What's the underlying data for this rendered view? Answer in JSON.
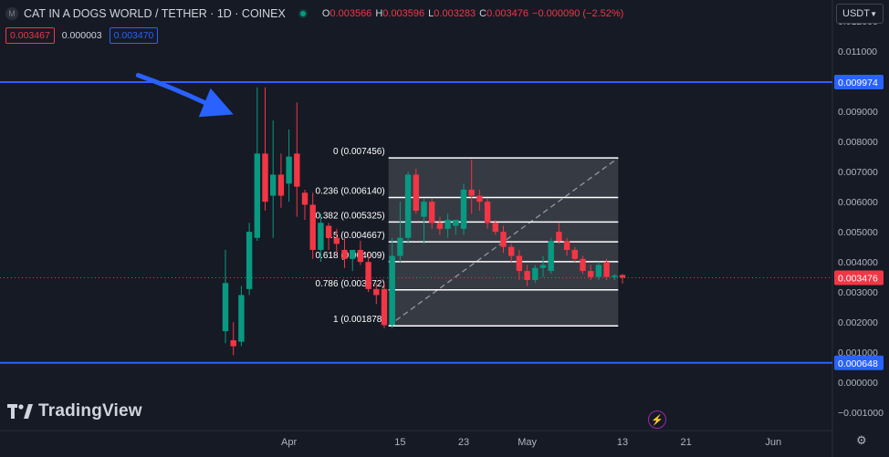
{
  "header": {
    "symbol_initial": "M",
    "title": "CAT IN A DOGS WORLD / TETHER · 1D · COINEX",
    "o_label": "O",
    "o_value": "0.003566",
    "h_label": "H",
    "h_value": "0.003596",
    "l_label": "L",
    "l_value": "0.003283",
    "c_label": "C",
    "c_value": "0.003476",
    "change": "−0.000090 (−2.52%)",
    "sell_price": "0.003467",
    "spread": "0.000003",
    "buy_price": "0.003470"
  },
  "currency_button": "USDT",
  "brand": "TradingView",
  "colors": {
    "up": "#089981",
    "down": "#f23645",
    "line": "#2962ff",
    "background": "#161a25"
  },
  "chart_data": {
    "type": "candlestick",
    "symbol": "CAT/USDT",
    "timeframe": "1D",
    "y_axis_ticks": [
      "0.012000",
      "0.011000",
      "0.010000",
      "0.009000",
      "0.008000",
      "0.007000",
      "0.006000",
      "0.005000",
      "0.004000",
      "0.003000",
      "0.002000",
      "0.001000",
      "0.000000",
      "−0.001000"
    ],
    "ylim": [
      -0.0016,
      0.0127
    ],
    "x_axis_ticks": [
      {
        "label": "Apr",
        "index": 8
      },
      {
        "label": "15",
        "index": 22
      },
      {
        "label": "23",
        "index": 30
      },
      {
        "label": "May",
        "index": 38
      },
      {
        "label": "13",
        "index": 50
      },
      {
        "label": "21",
        "index": 58
      },
      {
        "label": "Jun",
        "index": 69
      }
    ],
    "candles": [
      {
        "o": 0.0017,
        "h": 0.0044,
        "l": 0.0013,
        "c": 0.0033
      },
      {
        "o": 0.0014,
        "h": 0.002,
        "l": 0.0009,
        "c": 0.0012
      },
      {
        "o": 0.00135,
        "h": 0.0032,
        "l": 0.0012,
        "c": 0.0029
      },
      {
        "o": 0.0031,
        "h": 0.0053,
        "l": 0.0029,
        "c": 0.005
      },
      {
        "o": 0.0048,
        "h": 0.0098,
        "l": 0.0047,
        "c": 0.0076
      },
      {
        "o": 0.0076,
        "h": 0.0098,
        "l": 0.0057,
        "c": 0.006
      },
      {
        "o": 0.0062,
        "h": 0.0087,
        "l": 0.0048,
        "c": 0.0069
      },
      {
        "o": 0.0069,
        "h": 0.0076,
        "l": 0.0058,
        "c": 0.0062
      },
      {
        "o": 0.0066,
        "h": 0.0084,
        "l": 0.006,
        "c": 0.0075
      },
      {
        "o": 0.0076,
        "h": 0.0093,
        "l": 0.0055,
        "c": 0.0065
      },
      {
        "o": 0.0063,
        "h": 0.0064,
        "l": 0.0054,
        "c": 0.0059
      },
      {
        "o": 0.0059,
        "h": 0.0063,
        "l": 0.0041,
        "c": 0.0044
      },
      {
        "o": 0.0044,
        "h": 0.0056,
        "l": 0.004,
        "c": 0.0053
      },
      {
        "o": 0.0052,
        "h": 0.0053,
        "l": 0.0044,
        "c": 0.0048
      },
      {
        "o": 0.0048,
        "h": 0.0051,
        "l": 0.0043,
        "c": 0.0046
      },
      {
        "o": 0.0044,
        "h": 0.0048,
        "l": 0.0038,
        "c": 0.0041
      },
      {
        "o": 0.0041,
        "h": 0.0044,
        "l": 0.0037,
        "c": 0.0044
      },
      {
        "o": 0.0044,
        "h": 0.0047,
        "l": 0.0039,
        "c": 0.004
      },
      {
        "o": 0.004,
        "h": 0.0043,
        "l": 0.003,
        "c": 0.0031
      },
      {
        "o": 0.0031,
        "h": 0.0033,
        "l": 0.0026,
        "c": 0.0029
      },
      {
        "o": 0.0031,
        "h": 0.0033,
        "l": 0.0018,
        "c": 0.0019
      },
      {
        "o": 0.0019,
        "h": 0.0048,
        "l": 0.0018,
        "c": 0.0042
      },
      {
        "o": 0.0042,
        "h": 0.006,
        "l": 0.004,
        "c": 0.0048
      },
      {
        "o": 0.0048,
        "h": 0.007,
        "l": 0.0046,
        "c": 0.0069
      },
      {
        "o": 0.0069,
        "h": 0.0071,
        "l": 0.0056,
        "c": 0.0057
      },
      {
        "o": 0.0055,
        "h": 0.0061,
        "l": 0.0046,
        "c": 0.006
      },
      {
        "o": 0.006,
        "h": 0.0061,
        "l": 0.0051,
        "c": 0.0053
      },
      {
        "o": 0.0053,
        "h": 0.0055,
        "l": 0.0049,
        "c": 0.0051
      },
      {
        "o": 0.0051,
        "h": 0.0056,
        "l": 0.0048,
        "c": 0.0054
      },
      {
        "o": 0.0052,
        "h": 0.0054,
        "l": 0.0049,
        "c": 0.0054
      },
      {
        "o": 0.0051,
        "h": 0.0066,
        "l": 0.0049,
        "c": 0.0064
      },
      {
        "o": 0.0064,
        "h": 0.0074,
        "l": 0.0056,
        "c": 0.0062
      },
      {
        "o": 0.0062,
        "h": 0.0064,
        "l": 0.0057,
        "c": 0.006
      },
      {
        "o": 0.006,
        "h": 0.0061,
        "l": 0.0051,
        "c": 0.0053
      },
      {
        "o": 0.0053,
        "h": 0.0054,
        "l": 0.0049,
        "c": 0.005
      },
      {
        "o": 0.005,
        "h": 0.0052,
        "l": 0.0043,
        "c": 0.0045
      },
      {
        "o": 0.0045,
        "h": 0.0046,
        "l": 0.004,
        "c": 0.0042
      },
      {
        "o": 0.0042,
        "h": 0.0044,
        "l": 0.0034,
        "c": 0.0037
      },
      {
        "o": 0.0037,
        "h": 0.0039,
        "l": 0.0032,
        "c": 0.0034
      },
      {
        "o": 0.0034,
        "h": 0.0039,
        "l": 0.0033,
        "c": 0.0038
      },
      {
        "o": 0.0038,
        "h": 0.0042,
        "l": 0.0035,
        "c": 0.0039
      },
      {
        "o": 0.0037,
        "h": 0.0048,
        "l": 0.0036,
        "c": 0.0047
      },
      {
        "o": 0.005,
        "h": 0.0053,
        "l": 0.0046,
        "c": 0.0047
      },
      {
        "o": 0.0047,
        "h": 0.0048,
        "l": 0.0042,
        "c": 0.0044
      },
      {
        "o": 0.0044,
        "h": 0.0045,
        "l": 0.004,
        "c": 0.0041
      },
      {
        "o": 0.0041,
        "h": 0.0042,
        "l": 0.0036,
        "c": 0.0037
      },
      {
        "o": 0.0037,
        "h": 0.0039,
        "l": 0.0034,
        "c": 0.0035
      },
      {
        "o": 0.0035,
        "h": 0.004,
        "l": 0.0034,
        "c": 0.0039
      },
      {
        "o": 0.004,
        "h": 0.0041,
        "l": 0.0034,
        "c": 0.0035
      },
      {
        "o": 0.0035,
        "h": 0.0036,
        "l": 0.0034,
        "c": 0.00355
      },
      {
        "o": 0.003566,
        "h": 0.003596,
        "l": 0.003283,
        "c": 0.003476
      }
    ],
    "horizontal_lines": [
      {
        "value": 0.009974,
        "label": "0.009974",
        "color": "#2962ff"
      },
      {
        "value": 0.000648,
        "label": "0.000648",
        "color": "#2962ff"
      }
    ],
    "last_price": {
      "value": 0.003476,
      "label": "0.003476"
    },
    "fibonacci": {
      "start_index": 21,
      "end_index": 49,
      "levels": [
        {
          "ratio": "0",
          "price": "0.007456",
          "value": 0.007456
        },
        {
          "ratio": "0.236",
          "price": "0.006140",
          "value": 0.00614
        },
        {
          "ratio": "0.382",
          "price": "0.005325",
          "value": 0.005325
        },
        {
          "ratio": "0.5",
          "price": "0.004667",
          "value": 0.004667
        },
        {
          "ratio": "0.618",
          "price": "0.004009",
          "value": 0.004009
        },
        {
          "ratio": "0.786",
          "price": "0.003072",
          "value": 0.003072
        },
        {
          "ratio": "1",
          "price": "0.001878",
          "value": 0.001878
        }
      ]
    },
    "arrow": {
      "from": {
        "index": -11,
        "value": 0.0102
      },
      "to": {
        "index": 1,
        "value": 0.0089
      },
      "color": "#2962ff"
    },
    "grid": false
  }
}
